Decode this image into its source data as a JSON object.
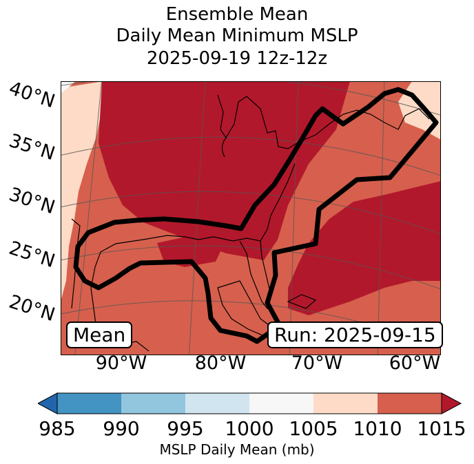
{
  "title": {
    "line1": "Ensemble Mean",
    "line2": "Daily Mean Minimum MSLP",
    "line3": "2025-09-19 12z-12z"
  },
  "map": {
    "lat_labels": [
      "40°N",
      "35°N",
      "30°N",
      "25°N",
      "20°N"
    ],
    "lon_labels": [
      "90°W",
      "80°W",
      "70°W",
      "60°W"
    ],
    "mean_tag": "Mean",
    "run_tag": "Run: 2025-09-15"
  },
  "colorbar": {
    "label": "MSLP Daily Mean (mb)",
    "ticks": [
      "985",
      "990",
      "995",
      "1000",
      "1005",
      "1010",
      "1015"
    ],
    "bins": [
      {
        "from": 985,
        "to": 990,
        "color": "#4393c3"
      },
      {
        "from": 990,
        "to": 995,
        "color": "#92c5de"
      },
      {
        "from": 995,
        "to": 1000,
        "color": "#d1e5f0"
      },
      {
        "from": 1000,
        "to": 1005,
        "color": "#f7f7f7"
      },
      {
        "from": 1005,
        "to": 1010,
        "color": "#fddbc7"
      },
      {
        "from": 1010,
        "to": 1015,
        "color": "#d6604d"
      }
    ],
    "under_color": "#2166ac",
    "over_color": "#b2182b"
  },
  "colors": {
    "light": "#fddbc7",
    "mid": "#d6604d",
    "dark": "#b2182b",
    "contour": "#000000"
  }
}
